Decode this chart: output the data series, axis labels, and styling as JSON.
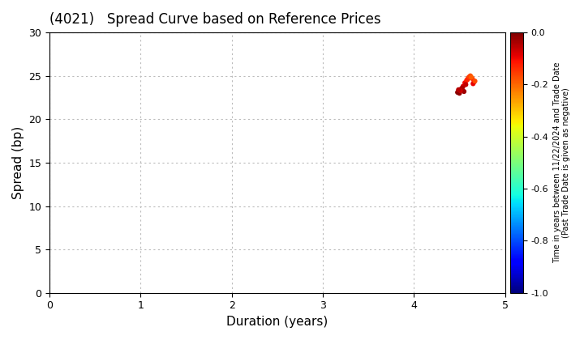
{
  "title": "(4021)   Spread Curve based on Reference Prices",
  "xlabel": "Duration (years)",
  "ylabel": "Spread (bp)",
  "xlim": [
    0,
    5
  ],
  "ylim": [
    0,
    30
  ],
  "xticks": [
    0,
    1,
    2,
    3,
    4,
    5
  ],
  "yticks": [
    0,
    5,
    10,
    15,
    20,
    25,
    30
  ],
  "colorbar_label_line1": "Time in years between 11/22/2024 and Trade Date",
  "colorbar_label_line2": "(Past Trade Date is given as negative)",
  "colorbar_vmin": -1.0,
  "colorbar_vmax": 0.0,
  "colorbar_ticks": [
    0.0,
    -0.2,
    -0.4,
    -0.6,
    -0.8,
    -1.0
  ],
  "scatter_x": [
    4.52,
    4.54,
    4.56,
    4.58,
    4.6,
    4.62,
    4.55,
    4.57,
    4.53,
    4.59,
    4.61,
    4.5,
    4.64,
    4.66,
    4.48,
    4.65,
    4.67,
    4.63,
    4.51,
    4.49
  ],
  "scatter_y": [
    23.5,
    23.8,
    24.2,
    24.5,
    24.8,
    25.0,
    23.2,
    24.0,
    23.6,
    24.6,
    24.9,
    23.0,
    24.7,
    24.3,
    23.1,
    24.1,
    24.4,
    24.85,
    23.3,
    23.4
  ],
  "scatter_c": [
    -0.05,
    -0.08,
    -0.1,
    -0.12,
    -0.15,
    -0.18,
    -0.03,
    -0.06,
    -0.04,
    -0.13,
    -0.16,
    -0.02,
    -0.14,
    -0.11,
    -0.01,
    -0.09,
    -0.17,
    -0.19,
    -0.07,
    -0.05
  ],
  "marker_size": 20,
  "background_color": "#ffffff",
  "grid_color": "#bbbbbb",
  "colormap": "jet",
  "title_fontsize": 12,
  "axis_label_fontsize": 11,
  "tick_fontsize": 9
}
